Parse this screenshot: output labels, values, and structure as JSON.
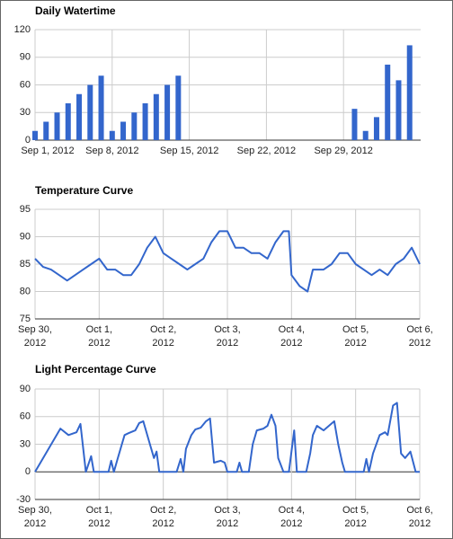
{
  "chart_data": [
    {
      "type": "bar",
      "title": "Daily Watertime",
      "color": "#3366cc",
      "grid": true,
      "x": [
        "2012-09-01",
        "2012-09-02",
        "2012-09-03",
        "2012-09-04",
        "2012-09-05",
        "2012-09-06",
        "2012-09-07",
        "2012-09-08",
        "2012-09-09",
        "2012-09-10",
        "2012-09-11",
        "2012-09-12",
        "2012-09-13",
        "2012-09-14",
        "2012-09-30",
        "2012-10-01",
        "2012-10-02",
        "2012-10-03",
        "2012-10-04",
        "2012-10-05"
      ],
      "values": [
        10,
        20,
        30,
        40,
        50,
        60,
        70,
        10,
        20,
        30,
        40,
        50,
        60,
        70,
        34,
        10,
        25,
        82,
        65,
        103
      ],
      "xlim": [
        "2012-09-01",
        "2012-10-06"
      ],
      "xticks": [
        {
          "value": "2012-09-01",
          "label": "Sep 1, 2012"
        },
        {
          "value": "2012-09-08",
          "label": "Sep 8, 2012"
        },
        {
          "value": "2012-09-15",
          "label": "Sep 15, 2012"
        },
        {
          "value": "2012-09-22",
          "label": "Sep 22, 2012"
        },
        {
          "value": "2012-09-29",
          "label": "Sep 29, 2012"
        }
      ],
      "ylim": [
        0,
        120
      ],
      "yticks": [
        0,
        30,
        60,
        90,
        120
      ]
    },
    {
      "type": "line",
      "title": "Temperature Curve",
      "color": "#3366cc",
      "grid": true,
      "x": [
        "2012-09-30T00:00",
        "2012-09-30T03:00",
        "2012-09-30T06:00",
        "2012-09-30T09:00",
        "2012-09-30T12:00",
        "2012-09-30T15:00",
        "2012-09-30T18:00",
        "2012-09-30T21:00",
        "2012-10-01T00:00",
        "2012-10-01T03:00",
        "2012-10-01T06:00",
        "2012-10-01T09:00",
        "2012-10-01T12:00",
        "2012-10-01T15:00",
        "2012-10-01T18:00",
        "2012-10-01T21:00",
        "2012-10-02T00:00",
        "2012-10-02T03:00",
        "2012-10-02T06:00",
        "2012-10-02T09:00",
        "2012-10-02T12:00",
        "2012-10-02T15:00",
        "2012-10-02T18:00",
        "2012-10-02T21:00",
        "2012-10-03T00:00",
        "2012-10-03T03:00",
        "2012-10-03T06:00",
        "2012-10-03T09:00",
        "2012-10-03T12:00",
        "2012-10-03T15:00",
        "2012-10-03T18:00",
        "2012-10-03T21:00",
        "2012-10-03T23:00",
        "2012-10-04T00:00",
        "2012-10-04T03:00",
        "2012-10-04T06:00",
        "2012-10-04T08:00",
        "2012-10-04T12:00",
        "2012-10-04T15:00",
        "2012-10-04T18:00",
        "2012-10-04T21:00",
        "2012-10-05T00:00",
        "2012-10-05T03:00",
        "2012-10-05T06:00",
        "2012-10-05T09:00",
        "2012-10-05T12:00",
        "2012-10-05T15:00",
        "2012-10-05T18:00",
        "2012-10-05T21:00",
        "2012-10-06T00:00"
      ],
      "values": [
        86,
        84.5,
        84,
        83,
        82,
        83,
        84,
        85,
        86,
        84,
        84,
        83,
        83,
        85,
        88,
        90,
        87,
        86,
        85,
        84,
        85,
        86,
        89,
        91,
        91,
        88,
        88,
        87,
        87,
        86,
        89,
        91,
        91,
        83,
        81,
        80,
        84,
        84,
        85,
        87,
        87,
        85,
        84,
        83,
        84,
        83,
        85,
        86,
        88,
        85
      ],
      "xlim": [
        "2012-09-30T00:00",
        "2012-10-06T00:00"
      ],
      "xticks": [
        {
          "value": "2012-09-30T00:00",
          "label": "Sep 30, 2012"
        },
        {
          "value": "2012-10-01T00:00",
          "label": "Oct 1, 2012"
        },
        {
          "value": "2012-10-02T00:00",
          "label": "Oct 2, 2012"
        },
        {
          "value": "2012-10-03T00:00",
          "label": "Oct 3, 2012"
        },
        {
          "value": "2012-10-04T00:00",
          "label": "Oct 4, 2012"
        },
        {
          "value": "2012-10-05T00:00",
          "label": "Oct 5, 2012"
        },
        {
          "value": "2012-10-06T00:00",
          "label": "Oct 6, 2012"
        }
      ],
      "ylim": [
        75,
        95
      ],
      "yticks": [
        75,
        80,
        85,
        90,
        95
      ]
    },
    {
      "type": "line",
      "title": "Light Percentage Curve",
      "color": "#3366cc",
      "grid": true,
      "x": [
        "2012-09-30T00:00",
        "2012-09-30T09:30",
        "2012-09-30T12:30",
        "2012-09-30T15:30",
        "2012-09-30T17:00",
        "2012-09-30T19:00",
        "2012-09-30T21:00",
        "2012-09-30T22:00",
        "2012-10-01T03:30",
        "2012-10-01T04:30",
        "2012-10-01T05:30",
        "2012-10-01T07:00",
        "2012-10-01T08:30",
        "2012-10-01T09:30",
        "2012-10-01T11:00",
        "2012-10-01T13:30",
        "2012-10-01T15:00",
        "2012-10-01T16:30",
        "2012-10-01T19:00",
        "2012-10-01T20:30",
        "2012-10-01T21:30",
        "2012-10-01T22:30",
        "2012-10-02T05:00",
        "2012-10-02T06:30",
        "2012-10-02T07:30",
        "2012-10-02T08:30",
        "2012-10-02T10:30",
        "2012-10-02T12:00",
        "2012-10-02T14:00",
        "2012-10-02T16:00",
        "2012-10-02T17:30",
        "2012-10-02T19:00",
        "2012-10-02T21:30",
        "2012-10-02T23:00",
        "2012-10-03T00:00",
        "2012-10-03T03:30",
        "2012-10-03T04:30",
        "2012-10-03T05:30",
        "2012-10-03T08:00",
        "2012-10-03T09:30",
        "2012-10-03T11:00",
        "2012-10-03T13:30",
        "2012-10-03T15:00",
        "2012-10-03T16:30",
        "2012-10-03T18:00",
        "2012-10-03T19:00",
        "2012-10-03T21:00",
        "2012-10-03T23:00",
        "2012-10-04T01:00",
        "2012-10-04T02:00",
        "2012-10-04T05:30",
        "2012-10-04T07:00",
        "2012-10-04T08:00",
        "2012-10-04T09:30",
        "2012-10-04T12:00",
        "2012-10-04T16:00",
        "2012-10-04T17:30",
        "2012-10-04T19:00",
        "2012-10-04T20:00",
        "2012-10-05T03:00",
        "2012-10-05T04:00",
        "2012-10-05T05:00",
        "2012-10-05T06:30",
        "2012-10-05T09:00",
        "2012-10-05T11:00",
        "2012-10-05T12:00",
        "2012-10-05T14:00",
        "2012-10-05T15:30",
        "2012-10-05T17:00",
        "2012-10-05T18:30",
        "2012-10-05T20:30",
        "2012-10-05T22:30",
        "2012-10-06T00:00"
      ],
      "values": [
        0,
        47,
        40,
        43,
        52,
        0,
        17,
        0,
        0,
        12,
        0,
        15,
        30,
        40,
        42,
        45,
        53,
        55,
        30,
        15,
        22,
        0,
        0,
        14,
        0,
        25,
        40,
        46,
        48,
        55,
        58,
        10,
        12,
        10,
        0,
        0,
        10,
        0,
        0,
        30,
        45,
        47,
        50,
        62,
        50,
        15,
        0,
        0,
        45,
        0,
        0,
        20,
        40,
        50,
        45,
        55,
        30,
        10,
        0,
        0,
        14,
        0,
        20,
        40,
        43,
        40,
        72,
        75,
        20,
        15,
        22,
        0,
        0
      ],
      "xlim": [
        "2012-09-30T00:00",
        "2012-10-06T00:00"
      ],
      "xticks": [
        {
          "value": "2012-09-30T00:00",
          "label": "Sep 30, 2012"
        },
        {
          "value": "2012-10-01T00:00",
          "label": "Oct 1, 2012"
        },
        {
          "value": "2012-10-02T00:00",
          "label": "Oct 2, 2012"
        },
        {
          "value": "2012-10-03T00:00",
          "label": "Oct 3, 2012"
        },
        {
          "value": "2012-10-04T00:00",
          "label": "Oct 4, 2012"
        },
        {
          "value": "2012-10-05T00:00",
          "label": "Oct 5, 2012"
        },
        {
          "value": "2012-10-06T00:00",
          "label": "Oct 6, 2012"
        }
      ],
      "ylim": [
        -30,
        90
      ],
      "yticks": [
        -30,
        0,
        30,
        60,
        90
      ]
    }
  ]
}
